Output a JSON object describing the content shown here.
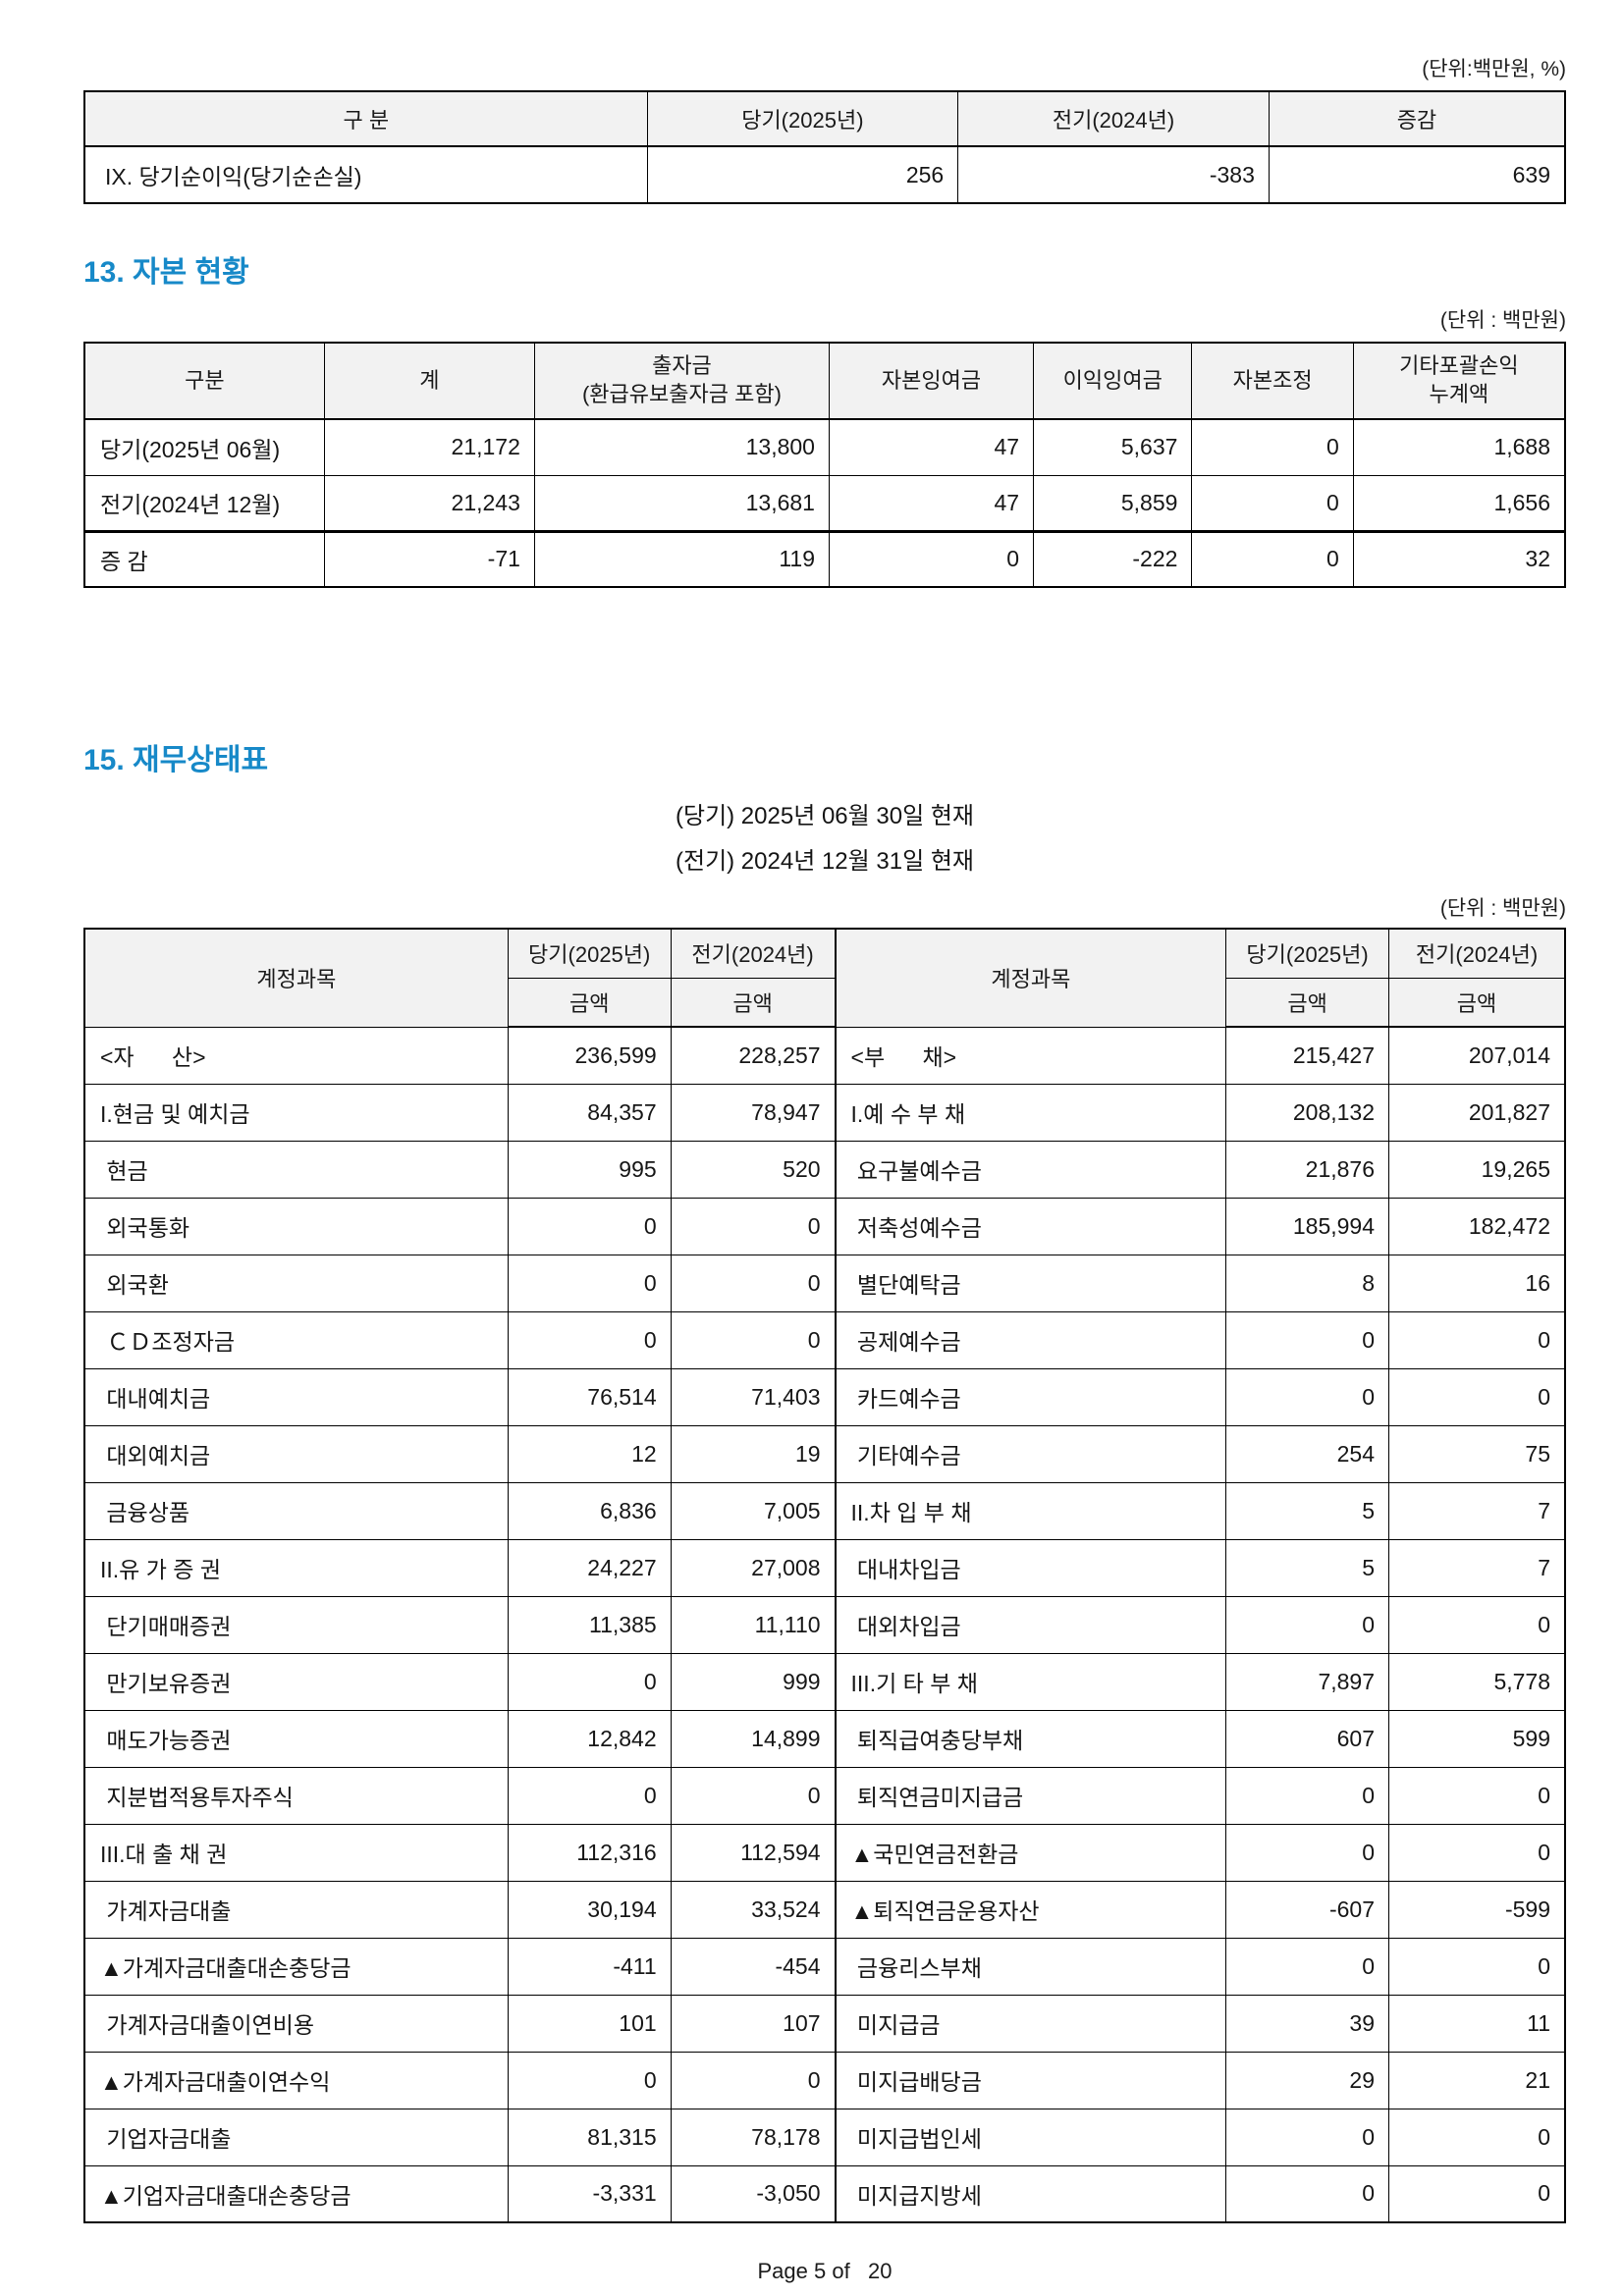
{
  "colors": {
    "accent": "#1789c8"
  },
  "income_table": {
    "unit": "(단위:백만원, %)",
    "headers": {
      "category": "구 분",
      "current": "당기(2025년)",
      "prior": "전기(2024년)",
      "change": "증감"
    },
    "rows": [
      {
        "label": "IX. 당기순이익(당기순손실)",
        "values": [
          "256",
          "-383",
          "639"
        ]
      }
    ]
  },
  "capital_section": {
    "title": "13. 자본 현황",
    "unit": "(단위 : 백만원)",
    "headers": {
      "category": "구분",
      "total": "계",
      "contribution": "출자금\n(환급유보출자금 포함)",
      "capital_surplus": "자본잉여금",
      "retained_earnings": "이익잉여금",
      "capital_adjustment": "자본조정",
      "oci": "기타포괄손익\n누계액"
    },
    "rows": [
      {
        "label": "당기(2025년 06월)",
        "values": [
          "21,172",
          "13,800",
          "47",
          "5,637",
          "0",
          "1,688"
        ]
      },
      {
        "label": "전기(2024년 12월)",
        "values": [
          "21,243",
          "13,681",
          "47",
          "5,859",
          "0",
          "1,656"
        ]
      },
      {
        "label": "증 감",
        "values": [
          "-71",
          "119",
          "0",
          "-222",
          "0",
          "32"
        ]
      }
    ]
  },
  "balance_sheet": {
    "title": "15. 재무상태표",
    "date_current": "(당기) 2025년 06월 30일 현재",
    "date_prior": "(전기) 2024년 12월 31일 현재",
    "unit": "(단위 : 백만원)",
    "col_account": "계정과목",
    "col_current": "당기(2025년)",
    "col_prior": "전기(2024년)",
    "col_amount": "금액",
    "left_rows": [
      {
        "label": "<자      산>",
        "current": "236,599",
        "prior": "228,257"
      },
      {
        "label": "I.현금 및 예치금",
        "current": "84,357",
        "prior": "78,947"
      },
      {
        "label": " 현금",
        "current": "995",
        "prior": "520"
      },
      {
        "label": " 외국통화",
        "current": "0",
        "prior": "0"
      },
      {
        "label": " 외국환",
        "current": "0",
        "prior": "0"
      },
      {
        "label": " ＣＤ조정자금",
        "current": "0",
        "prior": "0"
      },
      {
        "label": " 대내예치금",
        "current": "76,514",
        "prior": "71,403"
      },
      {
        "label": " 대외예치금",
        "current": "12",
        "prior": "19"
      },
      {
        "label": " 금융상품",
        "current": "6,836",
        "prior": "7,005"
      },
      {
        "label": "II.유 가 증 권",
        "current": "24,227",
        "prior": "27,008"
      },
      {
        "label": " 단기매매증권",
        "current": "11,385",
        "prior": "11,110"
      },
      {
        "label": " 만기보유증권",
        "current": "0",
        "prior": "999"
      },
      {
        "label": " 매도가능증권",
        "current": "12,842",
        "prior": "14,899"
      },
      {
        "label": " 지분법적용투자주식",
        "current": "0",
        "prior": "0"
      },
      {
        "label": "III.대 출 채 권",
        "current": "112,316",
        "prior": "112,594"
      },
      {
        "label": " 가계자금대출",
        "current": "30,194",
        "prior": "33,524"
      },
      {
        "label": "▲가계자금대출대손충당금",
        "current": "-411",
        "prior": "-454"
      },
      {
        "label": " 가계자금대출이연비용",
        "current": "101",
        "prior": "107"
      },
      {
        "label": "▲가계자금대출이연수익",
        "current": "0",
        "prior": "0"
      },
      {
        "label": " 기업자금대출",
        "current": "81,315",
        "prior": "78,178"
      },
      {
        "label": "▲기업자금대출대손충당금",
        "current": "-3,331",
        "prior": "-3,050"
      }
    ],
    "right_rows": [
      {
        "label": "<부      채>",
        "current": "215,427",
        "prior": "207,014"
      },
      {
        "label": "I.예 수 부 채",
        "current": "208,132",
        "prior": "201,827"
      },
      {
        "label": " 요구불예수금",
        "current": "21,876",
        "prior": "19,265"
      },
      {
        "label": " 저축성예수금",
        "current": "185,994",
        "prior": "182,472"
      },
      {
        "label": " 별단예탁금",
        "current": "8",
        "prior": "16"
      },
      {
        "label": " 공제예수금",
        "current": "0",
        "prior": "0"
      },
      {
        "label": " 카드예수금",
        "current": "0",
        "prior": "0"
      },
      {
        "label": " 기타예수금",
        "current": "254",
        "prior": "75"
      },
      {
        "label": "II.차 입 부 채",
        "current": "5",
        "prior": "7"
      },
      {
        "label": " 대내차입금",
        "current": "5",
        "prior": "7"
      },
      {
        "label": " 대외차입금",
        "current": "0",
        "prior": "0"
      },
      {
        "label": "III.기 타 부 채",
        "current": "7,897",
        "prior": "5,778"
      },
      {
        "label": " 퇴직급여충당부채",
        "current": "607",
        "prior": "599"
      },
      {
        "label": " 퇴직연금미지급금",
        "current": "0",
        "prior": "0"
      },
      {
        "label": "▲국민연금전환금",
        "current": "0",
        "prior": "0"
      },
      {
        "label": "▲퇴직연금운용자산",
        "current": "-607",
        "prior": "-599"
      },
      {
        "label": " 금융리스부채",
        "current": "0",
        "prior": "0"
      },
      {
        "label": " 미지급금",
        "current": "39",
        "prior": "11"
      },
      {
        "label": " 미지급배당금",
        "current": "29",
        "prior": "21"
      },
      {
        "label": " 미지급법인세",
        "current": "0",
        "prior": "0"
      },
      {
        "label": " 미지급지방세",
        "current": "0",
        "prior": "0"
      }
    ]
  },
  "page": {
    "footer": "Page 5 of   20"
  }
}
